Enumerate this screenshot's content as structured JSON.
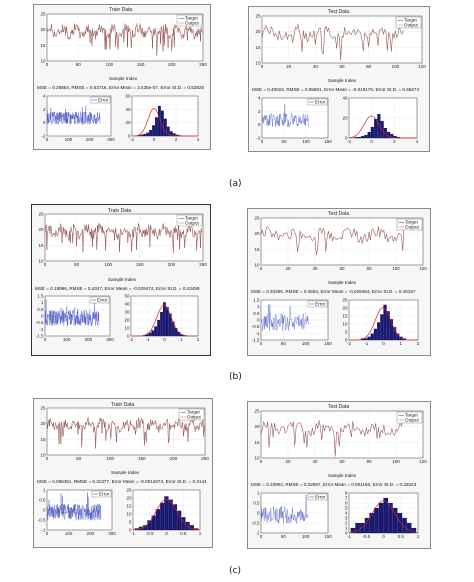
{
  "captions": [
    "(a)",
    "(b)",
    "(c)"
  ],
  "legend": {
    "target": "Target",
    "output": "Output",
    "error": "Error"
  },
  "x_axis_label": "Sample Index",
  "chart_data": [
    {
      "id": "a-train",
      "type": "line",
      "title": "Train Data",
      "stats": "MSE = 0.28854, RMSE = 0.53716, Error Mean = 3.435e-07, Error St.D. = 0.53825",
      "main": {
        "xlim": [
          0,
          250
        ],
        "ylim": [
          10,
          25
        ],
        "xticks": [
          0,
          50,
          100,
          150,
          200,
          250
        ],
        "yticks": [
          10,
          15,
          20,
          25
        ],
        "n": 250,
        "center": 19.5,
        "amp": 2.2
      },
      "error": {
        "xlim": [
          0,
          300
        ],
        "ylim": [
          -2,
          4
        ],
        "xticks": [
          0,
          100,
          200,
          300
        ],
        "yticks": [
          -2,
          0,
          2,
          4
        ],
        "n": 250,
        "amp": 0.9
      },
      "hist": {
        "xlim": [
          -2,
          4
        ],
        "ylim": [
          0,
          60
        ],
        "xticks": [
          -2,
          0,
          2,
          4
        ],
        "yticks": [
          0,
          20,
          40,
          60
        ],
        "counts": [
          1,
          2,
          3,
          5,
          9,
          16,
          28,
          45,
          38,
          26,
          14,
          7,
          4,
          2,
          1
        ],
        "hmin": -1.5,
        "hmax": 2.5,
        "mean": 0.0,
        "sd": 0.54
      }
    },
    {
      "id": "a-test",
      "type": "line",
      "title": "Test Data",
      "stats": "MSE = 0.40022, RMSE = 0.65591, Error Mean = -0.019176, Error St.D. = 0.65674",
      "main": {
        "xlim": [
          0,
          120
        ],
        "ylim": [
          10,
          25
        ],
        "xticks": [
          0,
          20,
          40,
          60,
          80,
          100,
          120
        ],
        "yticks": [
          10,
          15,
          20,
          25
        ],
        "n": 107,
        "center": 19.5,
        "amp": 2.4
      },
      "error": {
        "xlim": [
          0,
          150
        ],
        "ylim": [
          -2,
          4
        ],
        "xticks": [
          0,
          50,
          100,
          150
        ],
        "yticks": [
          -2,
          0,
          2,
          4
        ],
        "n": 107,
        "amp": 1.0
      },
      "hist": {
        "xlim": [
          -2,
          4
        ],
        "ylim": [
          0,
          40
        ],
        "xticks": [
          -2,
          0,
          2,
          4
        ],
        "yticks": [
          0,
          20,
          40
        ],
        "counts": [
          1,
          1,
          2,
          3,
          6,
          11,
          19,
          24,
          17,
          10,
          6,
          4,
          2,
          1
        ],
        "hmin": -1.5,
        "hmax": 2.5,
        "mean": -0.02,
        "sd": 0.66
      }
    },
    {
      "id": "b-train",
      "type": "line",
      "title": "Train Data",
      "stats": "MSE = 0.18996, RMSE = 0.4347, Error Mean = -0.029474, Error St.D. = 0.43459",
      "main": {
        "xlim": [
          0,
          250
        ],
        "ylim": [
          10,
          25
        ],
        "xticks": [
          0,
          50,
          100,
          150,
          200,
          250
        ],
        "yticks": [
          10,
          15,
          20,
          25
        ],
        "n": 250,
        "center": 19.5,
        "amp": 2.2
      },
      "error": {
        "xlim": [
          0,
          300
        ],
        "ylim": [
          -1.5,
          1.5
        ],
        "xticks": [
          0,
          100,
          200,
          300
        ],
        "yticks": [
          -1.5,
          -1,
          -0.5,
          0,
          0.5,
          1,
          1.5
        ],
        "n": 250,
        "amp": 0.55
      },
      "hist": {
        "xlim": [
          -2,
          2
        ],
        "ylim": [
          0,
          50
        ],
        "xticks": [
          -2,
          -1,
          0,
          1,
          2
        ],
        "yticks": [
          0,
          10,
          20,
          30,
          40,
          50
        ],
        "counts": [
          1,
          2,
          4,
          7,
          12,
          20,
          30,
          42,
          36,
          28,
          18,
          10,
          5,
          2,
          1
        ],
        "hmin": -1.3,
        "hmax": 1.3,
        "mean": -0.03,
        "sd": 0.43
      }
    },
    {
      "id": "b-test",
      "type": "line",
      "title": "Test Data",
      "stats": "MSE = 0.20286, RMSE = 0.4504, Error Mean = -0.029464, Error St.D. = 0.45157",
      "main": {
        "xlim": [
          0,
          120
        ],
        "ylim": [
          10,
          25
        ],
        "xticks": [
          0,
          20,
          40,
          60,
          80,
          100,
          120
        ],
        "yticks": [
          10,
          15,
          20,
          25
        ],
        "n": 107,
        "center": 19.5,
        "amp": 2.4
      },
      "error": {
        "xlim": [
          0,
          150
        ],
        "ylim": [
          -1.5,
          1.5
        ],
        "xticks": [
          0,
          50,
          100,
          150
        ],
        "yticks": [
          -1.5,
          -1,
          -0.5,
          0,
          0.5,
          1,
          1.5
        ],
        "n": 107,
        "amp": 0.6
      },
      "hist": {
        "xlim": [
          -2,
          2
        ],
        "ylim": [
          0,
          25
        ],
        "xticks": [
          -2,
          -1,
          0,
          1,
          2
        ],
        "yticks": [
          0,
          5,
          10,
          15,
          20,
          25
        ],
        "counts": [
          1,
          1,
          2,
          4,
          7,
          11,
          16,
          22,
          18,
          13,
          8,
          4,
          2,
          1
        ],
        "hmin": -1.3,
        "hmax": 1.3,
        "mean": -0.03,
        "sd": 0.45
      }
    },
    {
      "id": "c-train",
      "type": "line",
      "title": "Train Data",
      "stats": "MSE = 0.098451, RMSE = 0.31377, Error Mean = -0.0012673, Error St.D. = 0.3144",
      "main": {
        "xlim": [
          0,
          250
        ],
        "ylim": [
          10,
          25
        ],
        "xticks": [
          0,
          50,
          100,
          150,
          200,
          250
        ],
        "yticks": [
          10,
          15,
          20,
          25
        ],
        "n": 250,
        "center": 19.5,
        "amp": 2.2
      },
      "error": {
        "xlim": [
          0,
          300
        ],
        "ylim": [
          -1,
          1
        ],
        "xticks": [
          0,
          100,
          200,
          300
        ],
        "yticks": [
          -1,
          -0.5,
          0,
          0.5,
          1
        ],
        "n": 250,
        "amp": 0.38
      },
      "hist": {
        "xlim": [
          -1,
          1
        ],
        "ylim": [
          0,
          25
        ],
        "xticks": [
          -1,
          -0.5,
          0,
          0.5,
          1
        ],
        "yticks": [
          0,
          5,
          10,
          15,
          20,
          25
        ],
        "counts": [
          1,
          2,
          3,
          6,
          9,
          13,
          17,
          21,
          19,
          16,
          12,
          8,
          5,
          3,
          1
        ],
        "hmin": -0.95,
        "hmax": 0.95,
        "mean": 0.0,
        "sd": 0.31
      }
    },
    {
      "id": "c-test",
      "type": "line",
      "title": "Test Data",
      "stats": "MSE = 0.10902, RMSE = 0.32867, Error Mean = 0.001166, Error St.D. = 0.33023",
      "main": {
        "xlim": [
          0,
          120
        ],
        "ylim": [
          10,
          25
        ],
        "xticks": [
          0,
          20,
          40,
          60,
          80,
          100,
          120
        ],
        "yticks": [
          10,
          15,
          20,
          25
        ],
        "n": 107,
        "center": 19.5,
        "amp": 2.4
      },
      "error": {
        "xlim": [
          0,
          150
        ],
        "ylim": [
          -1,
          1
        ],
        "xticks": [
          0,
          50,
          100,
          150
        ],
        "yticks": [
          -1,
          -0.5,
          0,
          0.5,
          1
        ],
        "n": 107,
        "amp": 0.4
      },
      "hist": {
        "xlim": [
          -1,
          1
        ],
        "ylim": [
          0,
          8
        ],
        "xticks": [
          -1,
          -0.5,
          0,
          0.5,
          1
        ],
        "yticks": [
          0,
          1,
          2,
          3,
          4,
          5,
          6,
          7,
          8
        ],
        "counts": [
          1,
          2,
          2,
          3,
          4,
          5,
          6,
          7,
          6,
          5,
          4,
          3,
          2,
          1
        ],
        "hmin": -0.95,
        "hmax": 0.95,
        "mean": 0.0,
        "sd": 0.33
      }
    }
  ],
  "colors": {
    "target": "#333333",
    "output": "#cc2222",
    "error": "#2233bb",
    "hist": "#1a1a70",
    "fit": "#dd2222",
    "grid": "#bdbdbd",
    "panel": "#f6f6f6"
  }
}
